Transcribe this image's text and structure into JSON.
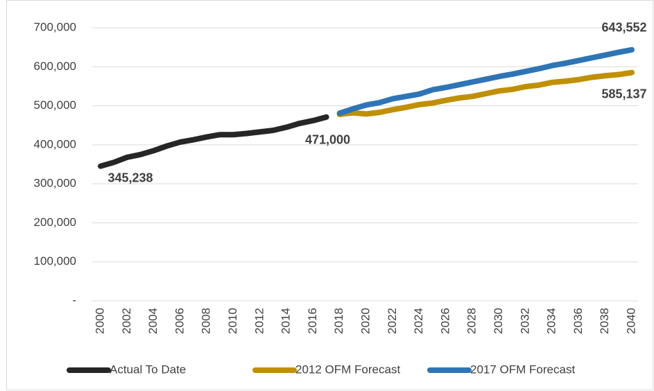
{
  "chart_data": {
    "type": "line",
    "x": [
      2000,
      2001,
      2002,
      2003,
      2004,
      2005,
      2006,
      2007,
      2008,
      2009,
      2010,
      2011,
      2012,
      2013,
      2014,
      2015,
      2016,
      2017,
      2018,
      2019,
      2020,
      2021,
      2022,
      2023,
      2024,
      2025,
      2026,
      2027,
      2028,
      2029,
      2030,
      2031,
      2032,
      2033,
      2034,
      2035,
      2036,
      2037,
      2038,
      2039,
      2040
    ],
    "xlim": [
      2000,
      2040
    ],
    "xticks": [
      2000,
      2002,
      2004,
      2006,
      2008,
      2010,
      2012,
      2014,
      2016,
      2018,
      2020,
      2022,
      2024,
      2026,
      2028,
      2030,
      2032,
      2034,
      2036,
      2038,
      2040
    ],
    "ylim": [
      0,
      700000
    ],
    "yticks": [
      {
        "value": 0,
        "label": "-"
      },
      {
        "value": 100000,
        "label": "100,000"
      },
      {
        "value": 200000,
        "label": "200,000"
      },
      {
        "value": 300000,
        "label": "300,000"
      },
      {
        "value": 400000,
        "label": "400,000"
      },
      {
        "value": 500000,
        "label": "500,000"
      },
      {
        "value": 600000,
        "label": "600,000"
      },
      {
        "value": 700000,
        "label": "700,000"
      }
    ],
    "grid": true,
    "legend": "bottom",
    "series": [
      {
        "name": "Actual To Date",
        "color": "#262626",
        "values": [
          345238,
          355000,
          368000,
          375000,
          385000,
          397000,
          407000,
          413000,
          420000,
          426000,
          426000,
          429000,
          433000,
          437000,
          445000,
          455000,
          462000,
          471000,
          null,
          null,
          null,
          null,
          null,
          null,
          null,
          null,
          null,
          null,
          null,
          null,
          null,
          null,
          null,
          null,
          null,
          null,
          null,
          null,
          null,
          null,
          null
        ],
        "value_labels": [
          "345,238",
          null,
          null,
          null,
          null,
          null,
          null,
          null,
          null,
          null,
          null,
          null,
          null,
          null,
          null,
          null,
          null,
          "471,000",
          null,
          null,
          null,
          null,
          null,
          null,
          null,
          null,
          null,
          null,
          null,
          null,
          null,
          null,
          null,
          null,
          null,
          null,
          null,
          null,
          null,
          null,
          null
        ]
      },
      {
        "name": "2012 OFM Forecast",
        "color": "#bf9000",
        "values": [
          null,
          null,
          null,
          null,
          null,
          null,
          null,
          null,
          null,
          null,
          null,
          null,
          null,
          null,
          null,
          null,
          null,
          null,
          478000,
          482000,
          479000,
          483000,
          490000,
          496000,
          503000,
          507000,
          514000,
          520000,
          524000,
          531000,
          538000,
          542000,
          549000,
          553000,
          560000,
          563000,
          567000,
          573000,
          577000,
          580000,
          585137
        ],
        "value_labels": [
          null,
          null,
          null,
          null,
          null,
          null,
          null,
          null,
          null,
          null,
          null,
          null,
          null,
          null,
          null,
          null,
          null,
          null,
          null,
          null,
          null,
          null,
          null,
          null,
          null,
          null,
          null,
          null,
          null,
          null,
          null,
          null,
          null,
          null,
          null,
          null,
          null,
          null,
          null,
          null,
          "585,137"
        ]
      },
      {
        "name": "2017 OFM Forecast",
        "color": "#2e75b6",
        "values": [
          null,
          null,
          null,
          null,
          null,
          null,
          null,
          null,
          null,
          null,
          null,
          null,
          null,
          null,
          null,
          null,
          null,
          null,
          481000,
          492000,
          502000,
          508000,
          518000,
          524000,
          530000,
          541000,
          547000,
          554000,
          561000,
          568000,
          575000,
          581000,
          588000,
          595000,
          603000,
          609000,
          616000,
          623000,
          630000,
          637000,
          643552
        ],
        "value_labels": [
          null,
          null,
          null,
          null,
          null,
          null,
          null,
          null,
          null,
          null,
          null,
          null,
          null,
          null,
          null,
          null,
          null,
          null,
          null,
          null,
          null,
          null,
          null,
          null,
          null,
          null,
          null,
          null,
          null,
          null,
          null,
          null,
          null,
          null,
          null,
          null,
          null,
          null,
          null,
          null,
          "643,552"
        ]
      }
    ]
  }
}
